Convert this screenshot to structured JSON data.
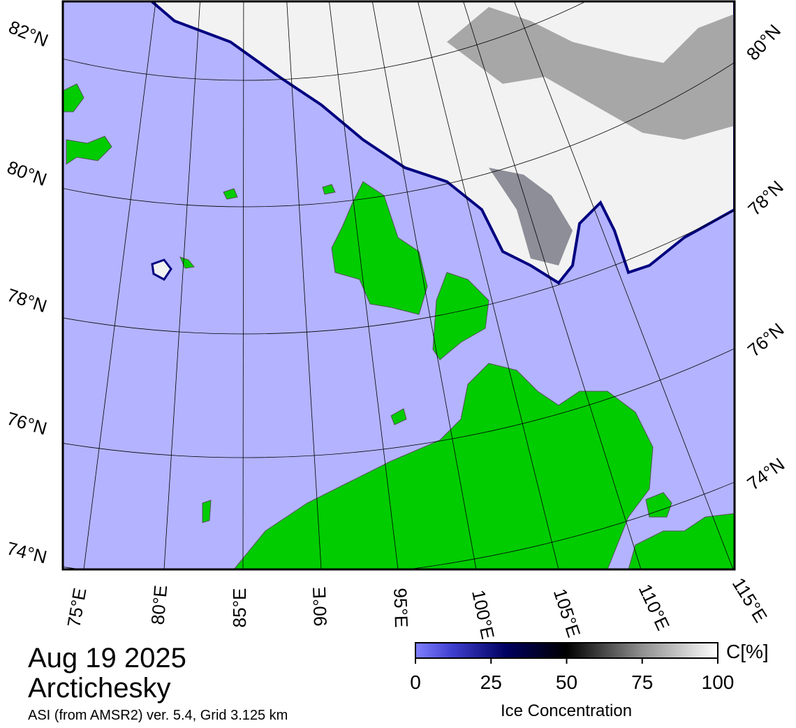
{
  "title": {
    "date": "Aug 19 2025",
    "region": "Arctichesky",
    "source": "ASI (from AMSR2) ver. 5.4,  Grid 3.125 km"
  },
  "map": {
    "lat_labels_left": [
      "82°N",
      "80°N",
      "78°N",
      "76°N",
      "74°N"
    ],
    "lat_labels_right": [
      "80°N",
      "78°N",
      "76°N",
      "74°N"
    ],
    "lon_labels": [
      "75°E",
      "80°E",
      "85°E",
      "90°E",
      "95°E",
      "100°E",
      "105°E",
      "110°E",
      "115°E"
    ]
  },
  "colorbar": {
    "unit": "C[%]",
    "label": "Ice Concentration",
    "lim": [
      0,
      100
    ],
    "ticks": [
      0,
      25,
      50,
      75,
      100
    ]
  }
}
